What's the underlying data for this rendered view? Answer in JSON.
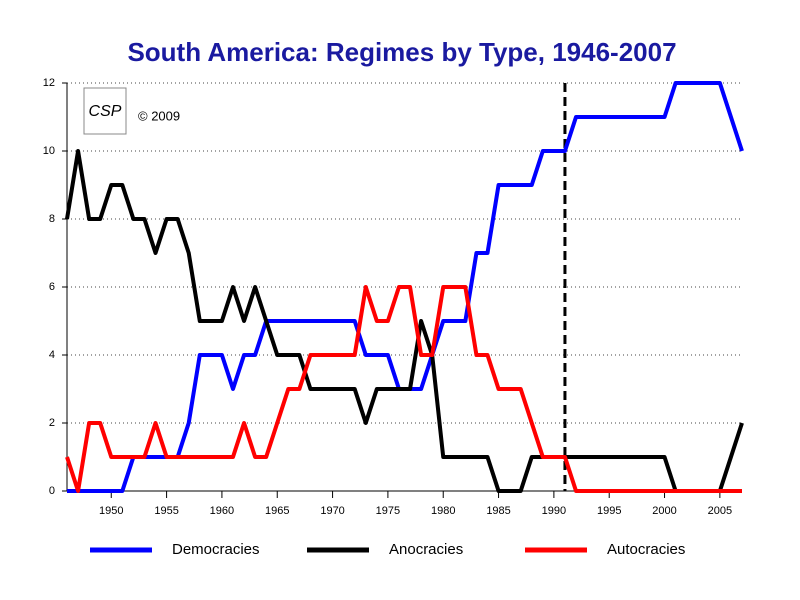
{
  "chart_data": {
    "type": "line",
    "title": "South America: Regimes by Type, 1946-2007",
    "copyright": "© 2009",
    "logo": "CSP",
    "x": [
      1946,
      1947,
      1948,
      1949,
      1950,
      1951,
      1952,
      1953,
      1954,
      1955,
      1956,
      1957,
      1958,
      1959,
      1960,
      1961,
      1962,
      1963,
      1964,
      1965,
      1966,
      1967,
      1968,
      1969,
      1970,
      1971,
      1972,
      1973,
      1974,
      1975,
      1976,
      1977,
      1978,
      1979,
      1980,
      1981,
      1982,
      1983,
      1984,
      1985,
      1986,
      1987,
      1988,
      1989,
      1990,
      1991,
      1992,
      1993,
      1994,
      1995,
      1996,
      1997,
      1998,
      1999,
      2000,
      2001,
      2002,
      2003,
      2004,
      2005,
      2006,
      2007
    ],
    "series": [
      {
        "name": "Democracies",
        "color": "#0000ff",
        "values": [
          0,
          0,
          0,
          0,
          0,
          0,
          1,
          1,
          1,
          1,
          1,
          2,
          4,
          4,
          4,
          3,
          4,
          4,
          5,
          5,
          5,
          5,
          5,
          5,
          5,
          5,
          5,
          4,
          4,
          4,
          3,
          3,
          3,
          4,
          5,
          5,
          5,
          7,
          7,
          9,
          9,
          9,
          9,
          10,
          10,
          10,
          11,
          11,
          11,
          11,
          11,
          11,
          11,
          11,
          11,
          12,
          12,
          12,
          12,
          12,
          11,
          10
        ]
      },
      {
        "name": "Anocracies",
        "color": "#000000",
        "values": [
          8,
          10,
          8,
          8,
          9,
          9,
          8,
          8,
          7,
          8,
          8,
          7,
          5,
          5,
          5,
          6,
          5,
          6,
          5,
          4,
          4,
          4,
          3,
          3,
          3,
          3,
          3,
          2,
          3,
          3,
          3,
          3,
          5,
          4,
          1,
          1,
          1,
          1,
          1,
          0,
          0,
          0,
          1,
          1,
          1,
          1,
          1,
          1,
          1,
          1,
          1,
          1,
          1,
          1,
          1,
          0,
          0,
          0,
          0,
          0,
          1,
          2
        ]
      },
      {
        "name": "Autocracies",
        "color": "#ff0000",
        "values": [
          1,
          0,
          2,
          2,
          1,
          1,
          1,
          1,
          2,
          1,
          1,
          1,
          1,
          1,
          1,
          1,
          2,
          1,
          1,
          2,
          3,
          3,
          4,
          4,
          4,
          4,
          4,
          6,
          5,
          5,
          6,
          6,
          4,
          4,
          6,
          6,
          6,
          4,
          4,
          3,
          3,
          3,
          2,
          1,
          1,
          1,
          0,
          0,
          0,
          0,
          0,
          0,
          0,
          0,
          0,
          0,
          0,
          0,
          0,
          0,
          0,
          0
        ]
      }
    ],
    "xlim": [
      1946,
      2007
    ],
    "xticks": [
      1950,
      1955,
      1960,
      1965,
      1970,
      1975,
      1980,
      1985,
      1990,
      1995,
      2000,
      2005
    ],
    "ylim": [
      0,
      12
    ],
    "yticks": [
      0,
      2,
      4,
      6,
      8,
      10,
      12
    ],
    "grid": true,
    "reference_x": 1991,
    "legend": "bottom"
  }
}
